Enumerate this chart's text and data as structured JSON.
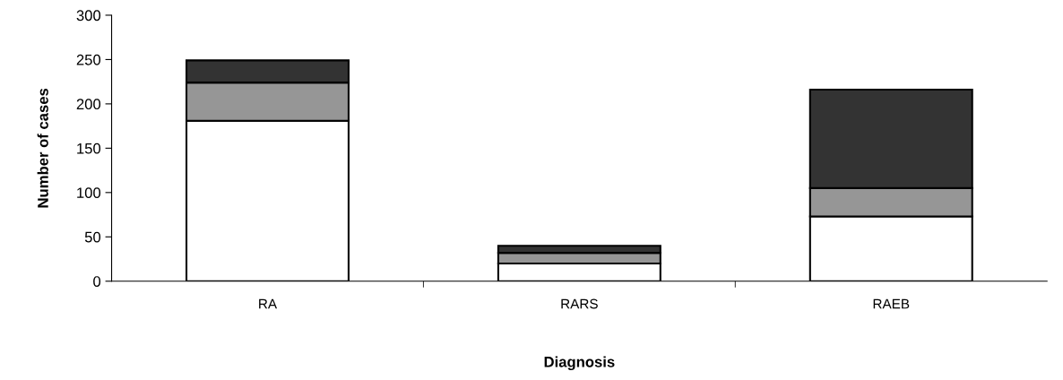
{
  "chart_data": {
    "type": "bar",
    "stacked": true,
    "xlabel": "Diagnosis",
    "ylabel": "Number of cases",
    "categories": [
      "RA",
      "RARS",
      "RAEB"
    ],
    "series": [
      {
        "color": "#ffffff",
        "values": [
          181,
          20,
          73
        ]
      },
      {
        "color": "#969696",
        "values": [
          43,
          12,
          32
        ]
      },
      {
        "color": "#333333",
        "values": [
          25,
          8,
          111
        ]
      }
    ],
    "ylim": [
      0,
      300
    ],
    "yticks": [
      0,
      50,
      100,
      150,
      200,
      250,
      300
    ]
  }
}
